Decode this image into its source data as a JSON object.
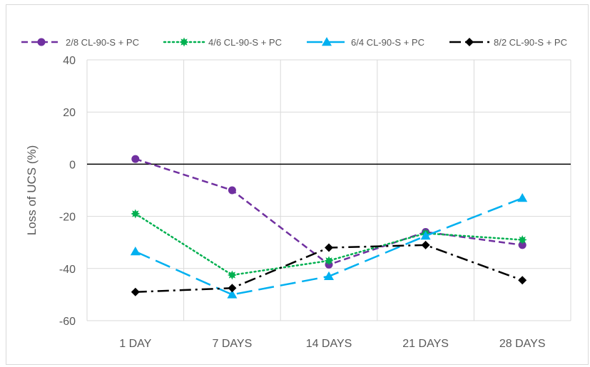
{
  "chart_data": {
    "type": "line",
    "title": "",
    "xlabel": "",
    "ylabel": "Loss of UCS (%)",
    "ylim": [
      -60,
      40
    ],
    "yticks": [
      40,
      20,
      0,
      -20,
      -40,
      -60
    ],
    "categories": [
      "1 DAY",
      "7 DAYS",
      "14 DAYS",
      "21 DAYS",
      "28 DAYS"
    ],
    "grid": "vertical and horizontal",
    "legend_position": "top",
    "series": [
      {
        "name": "2/8 CL-90-S + PC",
        "values": [
          2,
          -10,
          -38.5,
          -26,
          -31
        ],
        "color": "#7030a0",
        "marker": "circle",
        "dash": "dash"
      },
      {
        "name": "4/6 CL-90-S + PC",
        "values": [
          -19,
          -42.5,
          -37,
          -26.5,
          -29
        ],
        "color": "#00b050",
        "marker": "star",
        "dash": "dot"
      },
      {
        "name": "6/4 CL-90-S + PC",
        "values": [
          -33.5,
          -50,
          -43,
          -27.5,
          -13
        ],
        "color": "#00b0f0",
        "marker": "triangle",
        "dash": "longdash"
      },
      {
        "name": "8/2 CL-90-S + PC",
        "values": [
          -49,
          -47.5,
          -32,
          -31,
          -44.5
        ],
        "color": "#000000",
        "marker": "diamond",
        "dash": "dashdot"
      }
    ]
  }
}
